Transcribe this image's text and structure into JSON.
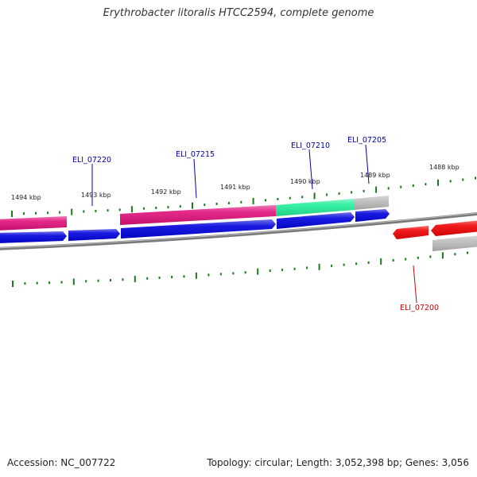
{
  "title": "Erythrobacter litoralis HTCC2594, complete genome",
  "footer": {
    "accession": "Accession: NC_007722",
    "summary": "Topology: circular; Length: 3,052,398 bp; Genes: 3,056"
  },
  "colors": {
    "forward_gene": "#0000dd",
    "reverse_gene": "#ee0000",
    "cds_magenta": "#e0107a",
    "cds_green": "#22ee99",
    "cds_gray": "#bbbbbb",
    "backbone": "#888888",
    "tick": "#1a7a1a",
    "forward_label": "#0000aa",
    "reverse_label": "#cc0000"
  },
  "ruler": {
    "labels": [
      "1494 kbp",
      "1493 kbp",
      "1492 kbp",
      "1491 kbp",
      "1490 kbp",
      "1489 kbp",
      "1488 kbp"
    ]
  },
  "genes": {
    "forward": [
      "ELI_07220",
      "ELI_07215",
      "ELI_07210",
      "ELI_07205"
    ],
    "reverse": [
      "ELI_07200"
    ]
  }
}
